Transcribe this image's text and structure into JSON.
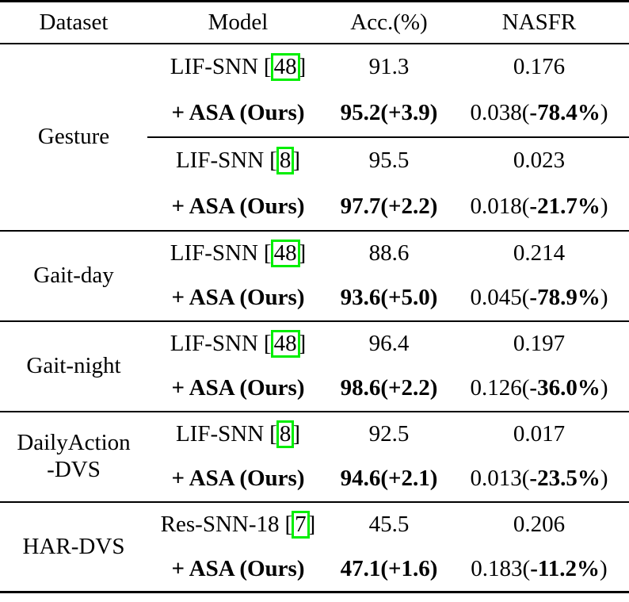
{
  "table": {
    "headers": {
      "dataset": "Dataset",
      "model": "Model",
      "acc": "Acc.(%)",
      "nasfr": "NASFR"
    },
    "brackets": {
      "open": "[",
      "close": "]"
    },
    "colors": {
      "citation_box_green": "#00ee00",
      "rule_black": "#000000"
    },
    "sections": [
      {
        "dataset_line1": "Gesture",
        "dataset_line2": "",
        "rows": [
          {
            "type": "baseline",
            "model_name": "LIF-SNN",
            "cite": "48",
            "acc": "91.3",
            "nasfr": "0.176"
          },
          {
            "type": "ours",
            "model_label": "+ ASA (Ours)",
            "acc": "95.2(+3.9)",
            "nasfr_pre": "0.038(",
            "nasfr_bold": "-78.4%",
            "nasfr_post": ")"
          },
          {
            "type": "baseline",
            "model_name": "LIF-SNN",
            "cite": "8",
            "acc": "95.5",
            "nasfr": "0.023"
          },
          {
            "type": "ours",
            "model_label": "+ ASA (Ours)",
            "acc": "97.7(+2.2)",
            "nasfr_pre": "0.018(",
            "nasfr_bold": "-21.7%",
            "nasfr_post": ")"
          }
        ]
      },
      {
        "dataset_line1": "Gait-day",
        "dataset_line2": "",
        "rows": [
          {
            "type": "baseline",
            "model_name": "LIF-SNN",
            "cite": "48",
            "acc": "88.6",
            "nasfr": "0.214"
          },
          {
            "type": "ours",
            "model_label": "+ ASA (Ours)",
            "acc": "93.6(+5.0)",
            "nasfr_pre": "0.045(",
            "nasfr_bold": "-78.9%",
            "nasfr_post": ")"
          }
        ]
      },
      {
        "dataset_line1": "Gait-night",
        "dataset_line2": "",
        "rows": [
          {
            "type": "baseline",
            "model_name": "LIF-SNN",
            "cite": "48",
            "acc": "96.4",
            "nasfr": "0.197"
          },
          {
            "type": "ours",
            "model_label": "+ ASA (Ours)",
            "acc": "98.6(+2.2)",
            "nasfr_pre": "0.126(",
            "nasfr_bold": "-36.0%",
            "nasfr_post": ")"
          }
        ]
      },
      {
        "dataset_line1": "DailyAction",
        "dataset_line2": "-DVS",
        "rows": [
          {
            "type": "baseline",
            "model_name": "LIF-SNN",
            "cite": "8",
            "acc": "92.5",
            "nasfr": "0.017"
          },
          {
            "type": "ours",
            "model_label": "+ ASA (Ours)",
            "acc": "94.6(+2.1)",
            "nasfr_pre": "0.013(",
            "nasfr_bold": "-23.5%",
            "nasfr_post": ")"
          }
        ]
      },
      {
        "dataset_line1": "HAR-DVS",
        "dataset_line2": "",
        "rows": [
          {
            "type": "baseline",
            "model_name": "Res-SNN-18",
            "cite": "7",
            "acc": "45.5",
            "nasfr": "0.206"
          },
          {
            "type": "ours",
            "model_label": "+ ASA (Ours)",
            "acc": "47.1(+1.6)",
            "nasfr_pre": "0.183(",
            "nasfr_bold": "-11.2%",
            "nasfr_post": ")"
          }
        ]
      }
    ]
  }
}
